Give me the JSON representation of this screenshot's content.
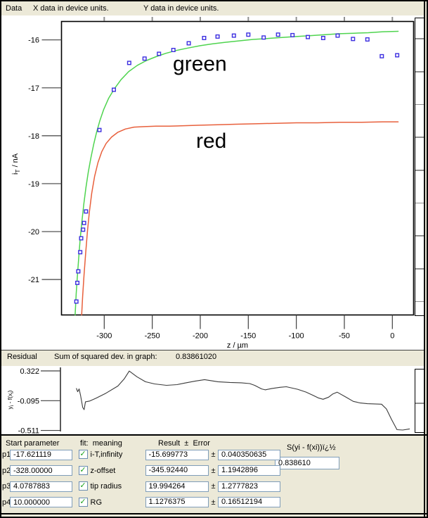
{
  "menubar": {
    "data_menu": "Data",
    "x_units": "X data in device units.",
    "y_units": "Y data in device units."
  },
  "residual_bar": {
    "title": "Residual",
    "sum_label": "Sum of squared dev. in graph:",
    "sum_value": "0.83861020"
  },
  "params_panel": {
    "headers": {
      "start": "Start parameter",
      "fit_meaning": "fit:  meaning",
      "result_error": "Result  ±  Error",
      "sum_formula": "S(yi - f(xi))ï¿½"
    },
    "sum_value": "0.838610",
    "rows": [
      {
        "id": "p1",
        "start": "-17.621119",
        "checked": true,
        "check_glyph": "✓",
        "meaning": "i-T,infinity",
        "result": "-15.699773",
        "pm": "±",
        "error": "0.040350635"
      },
      {
        "id": "p2",
        "start": "-328.00000",
        "checked": true,
        "check_glyph": "✓",
        "meaning": "z-offset",
        "result": "-345.92440",
        "pm": "±",
        "error": "1.1942896"
      },
      {
        "id": "p3",
        "start": "4.0787883",
        "checked": true,
        "check_glyph": "✓",
        "meaning": "tip radius",
        "result": "19.994264",
        "pm": "±",
        "error": "1.2777823"
      },
      {
        "id": "p4",
        "start": "10.000000",
        "checked": true,
        "check_glyph": "✓",
        "meaning": "RG",
        "result": "1.1276375",
        "pm": "±",
        "error": "0.16512194"
      }
    ]
  },
  "chart_data": [
    {
      "type": "scatter",
      "title": "",
      "xlabel": "z  /  µm",
      "ylabel": "iT / nA",
      "ylabel_parts": [
        {
          "t": "i"
        },
        {
          "t": "T",
          "sub": true
        },
        {
          "t": " / nA"
        }
      ],
      "xlim": [
        -344.5,
        22.1
      ],
      "ylim": [
        -21.74,
        -15.615
      ],
      "xticks": [
        -300,
        -250,
        -200,
        -150,
        -100,
        -50,
        0
      ],
      "yticks": [
        -16,
        -17,
        -18,
        -19,
        -20,
        -21
      ],
      "grid": false,
      "legend": "none",
      "annotations": [
        {
          "text": "green",
          "x": -228.5,
          "y": -16.64,
          "color": "#000000"
        },
        {
          "text": "red",
          "x": -204.4,
          "y": -18.25,
          "color": "#000000"
        }
      ],
      "series": [
        {
          "name": "measured points",
          "type": "scatter",
          "color": "#3c2ee0",
          "points": [
            [
              -329,
              -21.46
            ],
            [
              -328,
              -21.07
            ],
            [
              -327,
              -20.83
            ],
            [
              -325,
              -20.43
            ],
            [
              -324,
              -20.14
            ],
            [
              -322,
              -19.96
            ],
            [
              -321,
              -19.82
            ],
            [
              -319,
              -19.58
            ],
            [
              -305,
              -17.88
            ],
            [
              -290,
              -17.04
            ],
            [
              -274,
              -16.48
            ],
            [
              -258,
              -16.39
            ],
            [
              -243,
              -16.29
            ],
            [
              -228,
              -16.21
            ],
            [
              -212,
              -16.07
            ],
            [
              -196,
              -15.96
            ],
            [
              -182,
              -15.93
            ],
            [
              -165,
              -15.91
            ],
            [
              -150,
              -15.89
            ],
            [
              -134,
              -15.95
            ],
            [
              -119,
              -15.89
            ],
            [
              -104,
              -15.9
            ],
            [
              -88,
              -15.94
            ],
            [
              -72,
              -15.96
            ],
            [
              -57,
              -15.91
            ],
            [
              -41,
              -15.98
            ],
            [
              -26,
              -15.99
            ],
            [
              -11,
              -16.34
            ],
            [
              5,
              -16.32
            ]
          ]
        },
        {
          "name": "green fit curve",
          "type": "line",
          "color": "#4fd44f",
          "points": [
            [
              -330.3,
              -21.74
            ],
            [
              -329.2,
              -21.3
            ],
            [
              -328,
              -20.95
            ],
            [
              -326.6,
              -20.55
            ],
            [
              -325,
              -20.15
            ],
            [
              -323.2,
              -19.78
            ],
            [
              -321.2,
              -19.42
            ],
            [
              -319,
              -19.08
            ],
            [
              -316.6,
              -18.76
            ],
            [
              -314,
              -18.47
            ],
            [
              -311,
              -18.18
            ],
            [
              -308,
              -17.93
            ],
            [
              -304.5,
              -17.68
            ],
            [
              -300.5,
              -17.45
            ],
            [
              -295.5,
              -17.22
            ],
            [
              -289.5,
              -17.02
            ],
            [
              -282.5,
              -16.83
            ],
            [
              -274.5,
              -16.66
            ],
            [
              -265.5,
              -16.53
            ],
            [
              -256,
              -16.43
            ],
            [
              -246,
              -16.35
            ],
            [
              -236,
              -16.28
            ],
            [
              -225,
              -16.22
            ],
            [
              -213,
              -16.17
            ],
            [
              -200,
              -16.12
            ],
            [
              -187,
              -16.08
            ],
            [
              -174,
              -16.05
            ],
            [
              -160,
              -16.02
            ],
            [
              -145,
              -15.99
            ],
            [
              -130,
              -15.97
            ],
            [
              -115,
              -15.95
            ],
            [
              -100,
              -15.93
            ],
            [
              -85,
              -15.91
            ],
            [
              -70,
              -15.89
            ],
            [
              -55,
              -15.87
            ],
            [
              -40,
              -15.86
            ],
            [
              -25,
              -15.85
            ],
            [
              -10,
              -15.83
            ],
            [
              6,
              -15.82
            ]
          ]
        },
        {
          "name": "red theory curve",
          "type": "line",
          "color": "#e8603c",
          "points": [
            [
              -323.5,
              -21.74
            ],
            [
              -322.5,
              -21.35
            ],
            [
              -321,
              -20.9
            ],
            [
              -319.3,
              -20.45
            ],
            [
              -317.5,
              -20.0
            ],
            [
              -315.5,
              -19.6
            ],
            [
              -313,
              -19.2
            ],
            [
              -310,
              -18.85
            ],
            [
              -306.5,
              -18.56
            ],
            [
              -302.5,
              -18.33
            ],
            [
              -298,
              -18.16
            ],
            [
              -292.5,
              -18.03
            ],
            [
              -286,
              -17.93
            ],
            [
              -278,
              -17.86
            ],
            [
              -269,
              -17.82
            ],
            [
              -258,
              -17.81
            ],
            [
              -246,
              -17.8
            ],
            [
              -232,
              -17.8
            ],
            [
              -217,
              -17.79
            ],
            [
              -200,
              -17.78
            ],
            [
              -182,
              -17.77
            ],
            [
              -163,
              -17.76
            ],
            [
              -143,
              -17.75
            ],
            [
              -122,
              -17.74
            ],
            [
              -100,
              -17.73
            ],
            [
              -78,
              -17.73
            ],
            [
              -55,
              -17.72
            ],
            [
              -32,
              -17.72
            ],
            [
              -10,
              -17.71
            ],
            [
              6,
              -17.71
            ]
          ]
        }
      ]
    },
    {
      "type": "line",
      "title": "residual",
      "xlabel": "",
      "ylabel": "yi - f(xi)",
      "ylabel_parts": [
        {
          "t": "y"
        },
        {
          "t": "i",
          "sub": true
        },
        {
          "t": " - f(x"
        },
        {
          "t": "i",
          "sub": true
        },
        {
          "t": ")"
        }
      ],
      "xlim": [
        -344.5,
        22.1
      ],
      "ylim": [
        -0.525,
        0.371
      ],
      "xticks": [],
      "yticks": [
        0.322,
        -0.095,
        -0.511
      ],
      "grid": false,
      "legend": "none",
      "series": [
        {
          "name": "residual",
          "type": "line",
          "color": "#3a3a3a",
          "points": [
            [
              -328,
              0.08
            ],
            [
              -326.6,
              0.03
            ],
            [
              -325.1,
              0.07
            ],
            [
              -323.6,
              -0.02
            ],
            [
              -321.4,
              -0.19
            ],
            [
              -319.9,
              -0.22
            ],
            [
              -318.5,
              -0.11
            ],
            [
              -314.1,
              -0.1
            ],
            [
              -307.5,
              -0.06
            ],
            [
              -297.3,
              0.01
            ],
            [
              -284.9,
              0.11
            ],
            [
              -278.3,
              0.21
            ],
            [
              -273.1,
              0.32
            ],
            [
              -265.1,
              0.24
            ],
            [
              -256.3,
              0.17
            ],
            [
              -246.8,
              0.14
            ],
            [
              -234.4,
              0.12
            ],
            [
              -223.4,
              0.13
            ],
            [
              -216.1,
              0.15
            ],
            [
              -204.4,
              0.18
            ],
            [
              -194.9,
              0.2
            ],
            [
              -181,
              0.17
            ],
            [
              -168.5,
              0.16
            ],
            [
              -156.8,
              0.155
            ],
            [
              -148,
              0.145
            ],
            [
              -142.9,
              0.12
            ],
            [
              -135.6,
              0.07
            ],
            [
              -131.9,
              0.057
            ],
            [
              -125.3,
              0.075
            ],
            [
              -116.6,
              0.092
            ],
            [
              -110,
              0.1
            ],
            [
              -98.3,
              0.065
            ],
            [
              -89.5,
              0.025
            ],
            [
              -82.2,
              -0.02
            ],
            [
              -77,
              -0.055
            ],
            [
              -71.9,
              -0.075
            ],
            [
              -66.1,
              -0.045
            ],
            [
              -61.7,
              0.0
            ],
            [
              -57.3,
              0.024
            ],
            [
              -47.8,
              -0.047
            ],
            [
              -40.5,
              -0.105
            ],
            [
              -33.1,
              -0.127
            ],
            [
              -25.8,
              -0.137
            ],
            [
              -11.2,
              -0.144
            ],
            [
              -6.1,
              -0.21
            ],
            [
              -0.9,
              -0.355
            ],
            [
              4.9,
              -0.5
            ],
            [
              10.8,
              -0.505
            ],
            [
              18.1,
              -0.49
            ]
          ]
        }
      ]
    }
  ]
}
